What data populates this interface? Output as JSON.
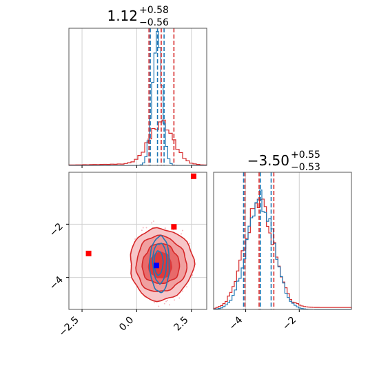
{
  "chart_data": {
    "type": "corner",
    "colors": {
      "red": "#d62728",
      "blue": "#1f77b4",
      "red_fill": "#f0a0a0",
      "red_fill_dark": "#e86a6a",
      "grid": "#d0d0d0"
    },
    "titles": [
      {
        "base": "1.12",
        "sup": "+0.58",
        "sub": "−0.56"
      },
      {
        "base": "−3.50",
        "sup": "+0.55",
        "sub": "−0.53"
      }
    ],
    "x_ticks": [
      {
        "value": -2.5,
        "label": "−2.5"
      },
      {
        "value": 0.0,
        "label": "0.0"
      },
      {
        "value": 2.5,
        "label": "2.5"
      }
    ],
    "y_ticks": [
      {
        "value": -2,
        "label": "−2"
      },
      {
        "value": -4,
        "label": "−4"
      }
    ],
    "param2_ticks": [
      {
        "value": -4,
        "label": "−4"
      },
      {
        "value": -2,
        "label": "−2"
      }
    ],
    "xlim": [
      -3.1,
      3.2
    ],
    "ylim": [
      -5.2,
      -0.05
    ],
    "hist1": {
      "quantiles_red": [
        0.56,
        1.7
      ],
      "quantiles_blue": [
        0.62,
        1.25
      ],
      "median_red": 1.12,
      "median_blue": 0.95
    },
    "hist2": {
      "quantiles_red": [
        -4.03,
        -2.95
      ],
      "quantiles_blue": [
        -4.08,
        -3.05
      ],
      "median_red": -3.5,
      "median_blue": -3.45
    },
    "scatter_points": [
      {
        "x": -2.2,
        "y": -3.1,
        "color": "red"
      },
      {
        "x": 1.7,
        "y": -2.1,
        "color": "red"
      },
      {
        "x": 2.6,
        "y": -0.2,
        "color": "red"
      },
      {
        "x": 0.9,
        "y": -3.55,
        "color": "blue"
      }
    ]
  }
}
